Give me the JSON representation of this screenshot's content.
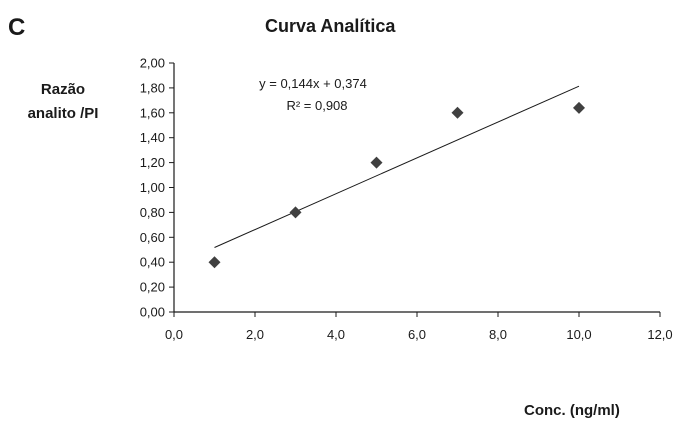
{
  "panel_letter": "C",
  "chart_data": {
    "type": "scatter",
    "title": "Curva Analítica",
    "xlabel": "Conc. (ng/ml)",
    "ylabel_lines": [
      "Razão",
      "analito /PI"
    ],
    "xlim": [
      0,
      12
    ],
    "ylim": [
      0,
      2
    ],
    "x_ticks": [
      0,
      2,
      4,
      6,
      8,
      10,
      12
    ],
    "y_ticks": [
      0,
      0.2,
      0.4,
      0.6,
      0.8,
      1.0,
      1.2,
      1.4,
      1.6,
      1.8,
      2.0
    ],
    "x_tick_labels": [
      "0,0",
      "2,0",
      "4,0",
      "6,0",
      "8,0",
      "10,0",
      "12,0"
    ],
    "y_tick_labels": [
      "0,00",
      "0,20",
      "0,40",
      "0,60",
      "0,80",
      "1,00",
      "1,20",
      "1,40",
      "1,60",
      "1,80",
      "2,00"
    ],
    "grid": false,
    "legend": "none",
    "points": [
      {
        "x": 1,
        "y": 0.4
      },
      {
        "x": 3,
        "y": 0.8
      },
      {
        "x": 5,
        "y": 1.2
      },
      {
        "x": 7,
        "y": 1.6
      },
      {
        "x": 10,
        "y": 1.64
      }
    ],
    "trendline": {
      "slope": 0.144,
      "intercept": 0.374,
      "x_range": [
        1,
        10
      ]
    },
    "equation_text": "y = 0,144x + 0,374",
    "r2_text": "R² = 0,908",
    "marker_color": "#404040",
    "line_color": "#1a1a1a"
  }
}
